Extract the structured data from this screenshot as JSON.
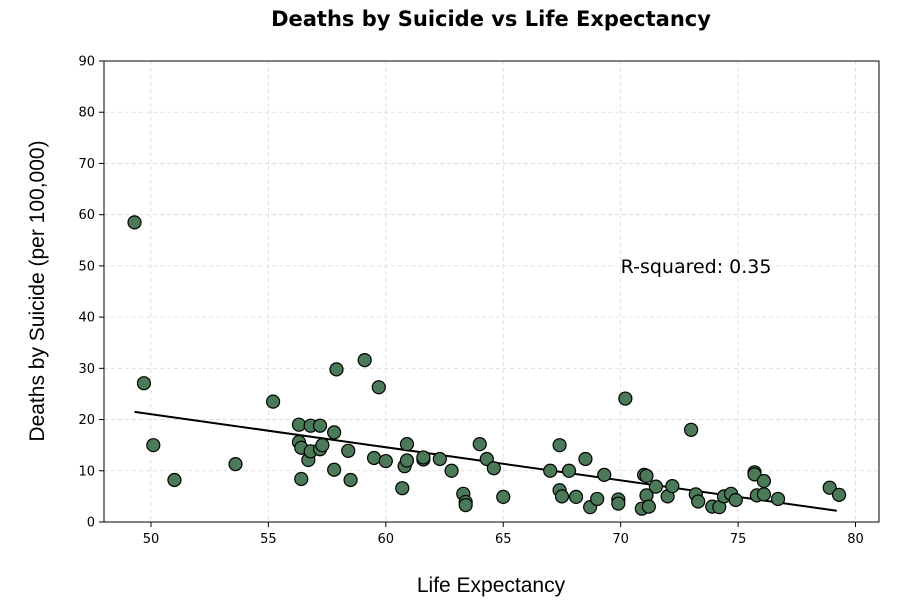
{
  "chart_data": {
    "type": "scatter",
    "title": "Deaths by Suicide vs Life Expectancy",
    "xlabel": "Life Expectancy",
    "ylabel": "Deaths by Suicide (per 100,000)",
    "xlim": [
      48,
      81
    ],
    "ylim": [
      0,
      90
    ],
    "xticks": [
      50,
      55,
      60,
      65,
      70,
      75,
      80
    ],
    "yticks": [
      0,
      10,
      20,
      30,
      40,
      50,
      60,
      70,
      80,
      90
    ],
    "grid": true,
    "annotation": {
      "text": "R-squared: 0.35",
      "x": 70.0,
      "y": 50
    },
    "trendline": {
      "x": [
        49.3,
        79.2
      ],
      "y": [
        21.5,
        2.2
      ]
    },
    "colors": {
      "marker_fill": "#4a7a58",
      "marker_edge": "#000000",
      "trendline": "#000000"
    },
    "points": [
      {
        "x": 49.3,
        "y": 58.5
      },
      {
        "x": 49.7,
        "y": 27.1
      },
      {
        "x": 50.1,
        "y": 15.0
      },
      {
        "x": 51.0,
        "y": 8.2
      },
      {
        "x": 53.6,
        "y": 11.3
      },
      {
        "x": 55.2,
        "y": 23.5
      },
      {
        "x": 56.3,
        "y": 19.0
      },
      {
        "x": 56.3,
        "y": 15.6
      },
      {
        "x": 56.4,
        "y": 14.5
      },
      {
        "x": 56.4,
        "y": 8.4
      },
      {
        "x": 56.8,
        "y": 18.8
      },
      {
        "x": 56.7,
        "y": 12.1
      },
      {
        "x": 56.8,
        "y": 13.8
      },
      {
        "x": 57.2,
        "y": 18.8
      },
      {
        "x": 57.2,
        "y": 14.2
      },
      {
        "x": 57.3,
        "y": 15.0
      },
      {
        "x": 57.8,
        "y": 17.5
      },
      {
        "x": 57.8,
        "y": 10.2
      },
      {
        "x": 57.9,
        "y": 29.8
      },
      {
        "x": 58.4,
        "y": 13.9
      },
      {
        "x": 58.5,
        "y": 8.2
      },
      {
        "x": 59.1,
        "y": 31.6
      },
      {
        "x": 59.5,
        "y": 12.5
      },
      {
        "x": 59.7,
        "y": 26.3
      },
      {
        "x": 60.0,
        "y": 11.9
      },
      {
        "x": 60.7,
        "y": 6.6
      },
      {
        "x": 60.8,
        "y": 10.9
      },
      {
        "x": 60.9,
        "y": 15.2
      },
      {
        "x": 60.9,
        "y": 12.0
      },
      {
        "x": 61.6,
        "y": 12.2
      },
      {
        "x": 61.6,
        "y": 12.6
      },
      {
        "x": 62.3,
        "y": 12.3
      },
      {
        "x": 62.8,
        "y": 10.0
      },
      {
        "x": 63.3,
        "y": 5.5
      },
      {
        "x": 63.4,
        "y": 3.9
      },
      {
        "x": 63.4,
        "y": 3.3
      },
      {
        "x": 64.0,
        "y": 15.2
      },
      {
        "x": 64.3,
        "y": 12.3
      },
      {
        "x": 64.6,
        "y": 10.5
      },
      {
        "x": 65.0,
        "y": 4.9
      },
      {
        "x": 67.0,
        "y": 10.0
      },
      {
        "x": 67.4,
        "y": 15.0
      },
      {
        "x": 67.4,
        "y": 6.2
      },
      {
        "x": 67.5,
        "y": 5.0
      },
      {
        "x": 67.8,
        "y": 10.0
      },
      {
        "x": 68.1,
        "y": 4.9
      },
      {
        "x": 68.5,
        "y": 12.3
      },
      {
        "x": 68.7,
        "y": 2.9
      },
      {
        "x": 69.0,
        "y": 4.5
      },
      {
        "x": 69.3,
        "y": 9.2
      },
      {
        "x": 69.9,
        "y": 4.4
      },
      {
        "x": 69.9,
        "y": 3.6
      },
      {
        "x": 70.2,
        "y": 24.1
      },
      {
        "x": 70.9,
        "y": 2.6
      },
      {
        "x": 71.0,
        "y": 9.2
      },
      {
        "x": 71.1,
        "y": 9.0
      },
      {
        "x": 71.1,
        "y": 5.2
      },
      {
        "x": 71.2,
        "y": 3.0
      },
      {
        "x": 71.5,
        "y": 6.9
      },
      {
        "x": 72.0,
        "y": 5.0
      },
      {
        "x": 72.2,
        "y": 7.0
      },
      {
        "x": 73.0,
        "y": 18.0
      },
      {
        "x": 73.2,
        "y": 5.4
      },
      {
        "x": 73.3,
        "y": 4.0
      },
      {
        "x": 73.9,
        "y": 3.0
      },
      {
        "x": 74.2,
        "y": 2.9
      },
      {
        "x": 74.4,
        "y": 5.0
      },
      {
        "x": 74.7,
        "y": 5.5
      },
      {
        "x": 74.9,
        "y": 4.3
      },
      {
        "x": 75.7,
        "y": 9.7
      },
      {
        "x": 75.7,
        "y": 9.3
      },
      {
        "x": 75.8,
        "y": 5.2
      },
      {
        "x": 76.1,
        "y": 8.0
      },
      {
        "x": 76.1,
        "y": 5.4
      },
      {
        "x": 76.7,
        "y": 4.5
      },
      {
        "x": 78.9,
        "y": 6.7
      },
      {
        "x": 79.3,
        "y": 5.3
      }
    ]
  }
}
